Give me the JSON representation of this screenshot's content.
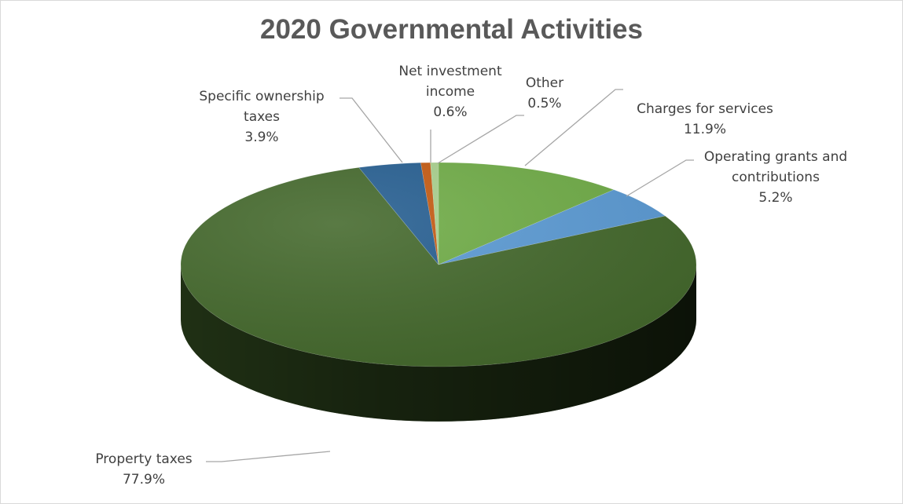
{
  "chart_data": {
    "type": "pie",
    "style": "3d",
    "title": "2020 Governmental Activities",
    "slices": [
      {
        "label_lines": [
          "Charges for services"
        ],
        "value": 11.9,
        "value_label": "11.9%",
        "color": "#70ad47"
      },
      {
        "label_lines": [
          "Operating grants and",
          "contributions"
        ],
        "value": 5.2,
        "value_label": "5.2%",
        "color": "#5b9bd5"
      },
      {
        "label_lines": [
          "Property taxes"
        ],
        "value": 77.9,
        "value_label": "77.9%",
        "color": "#43682b"
      },
      {
        "label_lines": [
          "Specific ownership",
          "taxes"
        ],
        "value": 3.9,
        "value_label": "3.9%",
        "color": "#255e91"
      },
      {
        "label_lines": [
          "Net investment",
          "income"
        ],
        "value": 0.6,
        "value_label": "0.6%",
        "color": "#c55a11"
      },
      {
        "label_lines": [
          "Other"
        ],
        "value": 0.5,
        "value_label": "0.5%",
        "color": "#a9d18e"
      }
    ]
  }
}
